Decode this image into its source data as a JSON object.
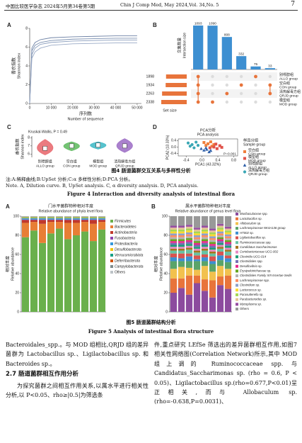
{
  "header": {
    "journal_cn": "中国比较医学杂志 2024年5月第34卷第5期",
    "journal_en": "Chin J Comp Med, May 2024,Vol. 34,No. 5",
    "page": "7"
  },
  "chart_data": [
    {
      "type": "line",
      "panel": "A",
      "ylabel_cn": "香农指数",
      "ylabel_en": "Shannon index",
      "xlabel_cn": "序列数",
      "xlabel_en": "Number of sequence",
      "x": [
        0,
        1000,
        2500,
        5000,
        10000,
        20000,
        30000,
        40000,
        50000
      ],
      "series": [
        {
          "color": "#7a8fb0",
          "values": [
            0,
            5.6,
            6.2,
            6.5,
            6.7,
            6.85,
            6.9,
            6.95,
            6.95
          ]
        },
        {
          "color": "#8da0bf",
          "values": [
            0,
            5.2,
            5.9,
            6.3,
            6.5,
            6.65,
            6.7,
            6.75,
            6.75
          ]
        },
        {
          "color": "#6f83a6",
          "values": [
            0,
            5.9,
            6.5,
            6.8,
            7.0,
            7.1,
            7.15,
            7.2,
            7.2
          ]
        },
        {
          "color": "#9aaac6",
          "values": [
            0,
            4.8,
            5.5,
            5.9,
            6.2,
            6.35,
            6.4,
            6.45,
            6.45
          ]
        }
      ],
      "xlim": [
        0,
        52000
      ],
      "xticks": [
        0,
        {
          "value": 10000,
          "label": "10 000"
        },
        {
          "value": 20000,
          "label": "20 000"
        },
        {
          "value": 30000,
          "label": "30 000"
        },
        {
          "value": 40000,
          "label": "40 000"
        },
        {
          "value": 50000,
          "label": "50 000"
        }
      ],
      "ylim": [
        0,
        8
      ],
      "yticks": [
        0,
        2,
        4,
        6,
        8
      ]
    },
    {
      "type": "upset",
      "panel": "B",
      "ylabel_cn": "交集数量",
      "ylabel_en": "Intersection size",
      "values": [
        1093,
        1090,
        808,
        332,
        75,
        33
      ],
      "color": "#3d8fd1",
      "set_color": "#e8743b",
      "set_size_label": "Set size",
      "sets": [
        {
          "name": "别嘌醇组",
          "name_en": "ALLO group",
          "size": 1898
        },
        {
          "name": "空白组",
          "name_en": "CON group",
          "size": 1934
        },
        {
          "name": "清热解毒方组",
          "name_en": "QRJD group",
          "size": 2263
        },
        {
          "name": "模型组",
          "name_en": "MOD group",
          "size": 2338
        }
      ]
    },
    {
      "type": "violin",
      "panel": "C",
      "annotation": "Kruskal-Wallis, P = 0.49",
      "ylabel_cn": "香农指数",
      "ylabel_en": "Shannon index",
      "categories": [
        "别嘌醇组",
        "空白组",
        "模型组",
        "清热解毒方组"
      ],
      "categories_en": [
        "ALLO group",
        "CON group",
        "MOD group",
        "QRJD group"
      ],
      "colors": [
        "#e8646a",
        "#5cb85c",
        "#3ab7c4",
        "#9b6bc4"
      ],
      "values": [
        6.7,
        7.0,
        7.1,
        7.0
      ],
      "min": [
        5.9,
        6.4,
        6.6,
        6.2
      ],
      "max": [
        7.8,
        7.5,
        7.5,
        7.9
      ],
      "ylim": [
        5.6,
        8.2
      ],
      "yticks": [
        6,
        7,
        8
      ]
    },
    {
      "type": "scatter",
      "panel": "D",
      "title_cn": "PCA分析",
      "title_en": "PCA analysis",
      "xlabel": "PCA1 (43.32%)",
      "ylabel": "PCA2 (13.33%)",
      "annotation": "P=0.001",
      "legend_title_cn": "样品分组",
      "legend_title_en": "Sample group",
      "xlim": [
        -0.6,
        0.9
      ],
      "ylim": [
        -0.55,
        0.5
      ],
      "xticks": [
        -0.4,
        {
          "value": 0,
          "label": "0.0"
        },
        0.4,
        0.8
      ],
      "yticks": [
        -0.4,
        {
          "value": 0,
          "label": "0.0"
        },
        0.4
      ],
      "series": [
        {
          "name": "空白组",
          "name_en": "CON group",
          "color": "#f07f3c",
          "marker": "square",
          "x": [
            0.05,
            0.15,
            0.22,
            0.3,
            0.1,
            0.25
          ],
          "y": [
            0.28,
            0.2,
            0.32,
            0.15,
            0.1,
            0.05
          ]
        },
        {
          "name": "模型组",
          "name_en": "MOD group",
          "color": "#e0524a",
          "marker": "square",
          "x": [
            0.3,
            0.38,
            0.45,
            0.2,
            0.35,
            0.5
          ],
          "y": [
            0.0,
            -0.1,
            0.08,
            -0.05,
            0.18,
            -0.02
          ]
        },
        {
          "name": "别嘌醇组",
          "name_en": "ALLO group",
          "color": "#2f5fa8",
          "marker": "triangle",
          "x": [
            0.05,
            0.12,
            0.18,
            -0.02,
            0.1,
            0.22
          ],
          "y": [
            -0.2,
            -0.15,
            -0.3,
            -0.1,
            -0.05,
            -0.22
          ]
        },
        {
          "name": "清热解毒方组",
          "name_en": "QRJD group",
          "color": "#3aa7b5",
          "marker": "circle",
          "x": [
            -0.35,
            -0.25,
            -0.15,
            -0.3,
            -0.1,
            -0.2
          ],
          "y": [
            0.25,
            0.15,
            0.3,
            0.05,
            0.1,
            -0.05
          ]
        }
      ]
    },
    {
      "type": "stacked_bar",
      "panel": "A",
      "title_cn": "门水平菌群物种相对丰度",
      "title_en": "Relative abundance of phyla level flora",
      "ylabel_cn": "相对丰度",
      "ylabel_en": "Relative abundance",
      "ylim": [
        0,
        100
      ],
      "yticks": [
        0,
        20,
        40,
        60,
        80,
        100
      ],
      "series": [
        {
          "name": "Firmicutes",
          "color": "#6ab04c",
          "values": [
            78,
            85,
            72,
            82,
            87,
            76,
            80,
            84,
            74,
            86
          ]
        },
        {
          "name": "Bacteroidetes",
          "color": "#e87e35",
          "values": [
            15,
            9,
            20,
            12,
            7,
            17,
            13,
            10,
            18,
            8
          ]
        },
        {
          "name": "Actinobacteria",
          "color": "#c0392b",
          "values": [
            3,
            2,
            4,
            2,
            2,
            3,
            3,
            2,
            4,
            2
          ]
        },
        {
          "name": "Fusobacteria",
          "color": "#8e44ad",
          "values": [
            0.5,
            0.5,
            0.5,
            0.5,
            0.5,
            0.5,
            0.5,
            0.5,
            0.5,
            0.5
          ]
        },
        {
          "name": "Proteobacteria",
          "color": "#3498db",
          "values": [
            1.5,
            1.5,
            1.5,
            1.5,
            1.5,
            1.5,
            1.5,
            1.5,
            1.5,
            1.5
          ]
        },
        {
          "name": "Desulfobacterota",
          "color": "#f1c40f",
          "values": [
            0.8,
            0.8,
            0.8,
            0.8,
            0.8,
            0.8,
            0.8,
            0.8,
            0.8,
            0.8
          ]
        },
        {
          "name": "Verrucomicrobiota",
          "color": "#16a085",
          "values": [
            0.4,
            0.4,
            0.4,
            0.4,
            0.4,
            0.4,
            0.4,
            0.4,
            0.4,
            0.4
          ]
        },
        {
          "name": "Deferribacterota",
          "color": "#d35400",
          "values": [
            0.2,
            0.2,
            0.2,
            0.2,
            0.2,
            0.2,
            0.2,
            0.2,
            0.2,
            0.2
          ]
        },
        {
          "name": "Campylobacterota",
          "color": "#7f8c8d",
          "values": [
            0.2,
            0.2,
            0.2,
            0.2,
            0.2,
            0.2,
            0.2,
            0.2,
            0.2,
            0.2
          ]
        },
        {
          "name": "Others",
          "color": "#bdc3c7",
          "values": [
            0.4,
            0.4,
            0.4,
            0.4,
            0.4,
            0.4,
            0.4,
            0.4,
            0.4,
            0.4
          ]
        }
      ]
    },
    {
      "type": "stacked_bar",
      "panel": "B",
      "title_cn": "属水平菌群物种相对丰度",
      "title_en": "Relative abundance of genus level flora",
      "ylabel_cn": "相对丰度",
      "ylabel_en": "Relative abundance",
      "ylim": [
        0,
        100
      ],
      "yticks": [
        0,
        20,
        40,
        60,
        80,
        100
      ],
      "series": [
        {
          "name": "Muribaculaceae spp.",
          "color": "#8c4b9e",
          "values": [
            20,
            25,
            18,
            30,
            22,
            15,
            28,
            24
          ]
        },
        {
          "name": "Lactobacillus sp.",
          "color": "#e8743b",
          "values": [
            15,
            10,
            20,
            8,
            12,
            18,
            9,
            14
          ]
        },
        {
          "name": "Allobaculum sp.",
          "color": "#f2c14e",
          "values": [
            10,
            12,
            8,
            6,
            14,
            9,
            11,
            7
          ]
        },
        {
          "name": "Lachnospiraceae NK4A136 group",
          "color": "#5aa469",
          "values": [
            8,
            6,
            7,
            9,
            5,
            8,
            6,
            7
          ]
        },
        {
          "name": "HT002 sp.",
          "color": "#3d8fd1",
          "values": [
            4,
            3,
            5,
            2,
            4,
            3,
            5,
            4
          ]
        },
        {
          "name": "Ligilactobacillus sp.",
          "color": "#d9534f",
          "values": [
            4,
            5,
            3,
            4,
            3,
            5,
            4,
            3
          ]
        },
        {
          "name": "Ruminococcaceae spp.",
          "color": "#66c2a5",
          "values": [
            3,
            3,
            4,
            3,
            4,
            3,
            3,
            4
          ]
        },
        {
          "name": "Candidatus Saccharimonas",
          "color": "#a6761d",
          "values": [
            2,
            2,
            2,
            2,
            2,
            2,
            2,
            2
          ]
        },
        {
          "name": "Coriobacteriaceae UCG-002",
          "color": "#e78ac3",
          "values": [
            2,
            2,
            2,
            2,
            2,
            2,
            2,
            2
          ]
        },
        {
          "name": "Clostridia UCG-014",
          "color": "#1b9e77",
          "values": [
            2,
            2,
            2,
            2,
            2,
            2,
            2,
            2
          ]
        },
        {
          "name": "Clostridiales spp.",
          "color": "#7570b3",
          "values": [
            2,
            2,
            2,
            2,
            2,
            2,
            2,
            2
          ]
        },
        {
          "name": "Desulfovibrio sp.",
          "color": "#e7298a",
          "values": [
            2,
            2,
            2,
            2,
            2,
            2,
            2,
            2
          ]
        },
        {
          "name": "Erysipelotrichaceae sp.",
          "color": "#66a61e",
          "values": [
            2,
            2,
            2,
            2,
            2,
            2,
            2,
            2
          ]
        },
        {
          "name": "Clostridiales Family XIII Incertae Sedis",
          "color": "#b3b3b3",
          "values": [
            2,
            2,
            2,
            2,
            2,
            2,
            2,
            2
          ]
        },
        {
          "name": "Lachnospiraceae spp.",
          "color": "#fc8d62",
          "values": [
            2,
            2,
            2,
            2,
            2,
            2,
            2,
            2
          ]
        },
        {
          "name": "Clostridium sp.",
          "color": "#8da0cb",
          "values": [
            2,
            2,
            2,
            2,
            2,
            2,
            2,
            2
          ]
        },
        {
          "name": "Lactococcus sp.",
          "color": "#ffd92f",
          "values": [
            2,
            2,
            2,
            2,
            2,
            2,
            2,
            2
          ]
        },
        {
          "name": "Parasutterella sp.",
          "color": "#a6d854",
          "values": [
            2,
            2,
            2,
            2,
            2,
            2,
            2,
            2
          ]
        },
        {
          "name": "Parabacteroides sp.",
          "color": "#e5c494",
          "values": [
            2,
            2,
            2,
            2,
            2,
            2,
            2,
            2
          ]
        },
        {
          "name": "Mycoplasma sp.",
          "color": "#984ea3",
          "values": [
            2,
            2,
            2,
            2,
            2,
            2,
            2,
            2
          ]
        },
        {
          "name": "Others",
          "color": "#999999",
          "values": [
            10,
            10,
            9,
            12,
            10,
            13,
            8,
            11
          ]
        }
      ]
    }
  ],
  "figure4": {
    "title": "图4  肠道菌群交互关系与多样性分析",
    "note_cn": "注:A:稀释曲线;B:UpSet 分析;C:α 多样性分析;D:PCA 分析。",
    "note_en": "Note. A, Dilution curve. B, UpSet analysis. C, α diversity analysis. D, PCA analysis.",
    "caption_en": "Figure 4  Interaction and diversity analysis of intestinal flora"
  },
  "figure5": {
    "title": "图5  肠道菌群结构分析",
    "caption_en": "Figure 5  Analysis of intestinal flora structure"
  },
  "body": {
    "left_p1": "Bacteroidales_spp.。与 MOD 组相比,QRJD 组的差异菌群为 Lactobacillus sp.、Ligilactobacillus sp. 和 Bacteroides sp.。",
    "heading": "2.7  肠道菌群相互作用分析",
    "left_p2": "为探究菌群之间相互作用关系,以属水平进行相关性分析,以 P<0.05、rho≥|0.5|为筛选条",
    "right_p": "件,重点研究 LEfSe 筛选出的差异菌群相互作用,如图7 相关性网络图(Correlation Network)所示,其中 MOD 组上调的 Ruminococcaceae spp. 与 Candidatus_Saccharimonas sp. (rho = 0.6, P < 0.05)、Ligilactobacillus sp.(rho=0.677,P<0.01)呈正相关,而与 Allobaculum sp.(rho=-0.638,P=0.0031)、"
  }
}
